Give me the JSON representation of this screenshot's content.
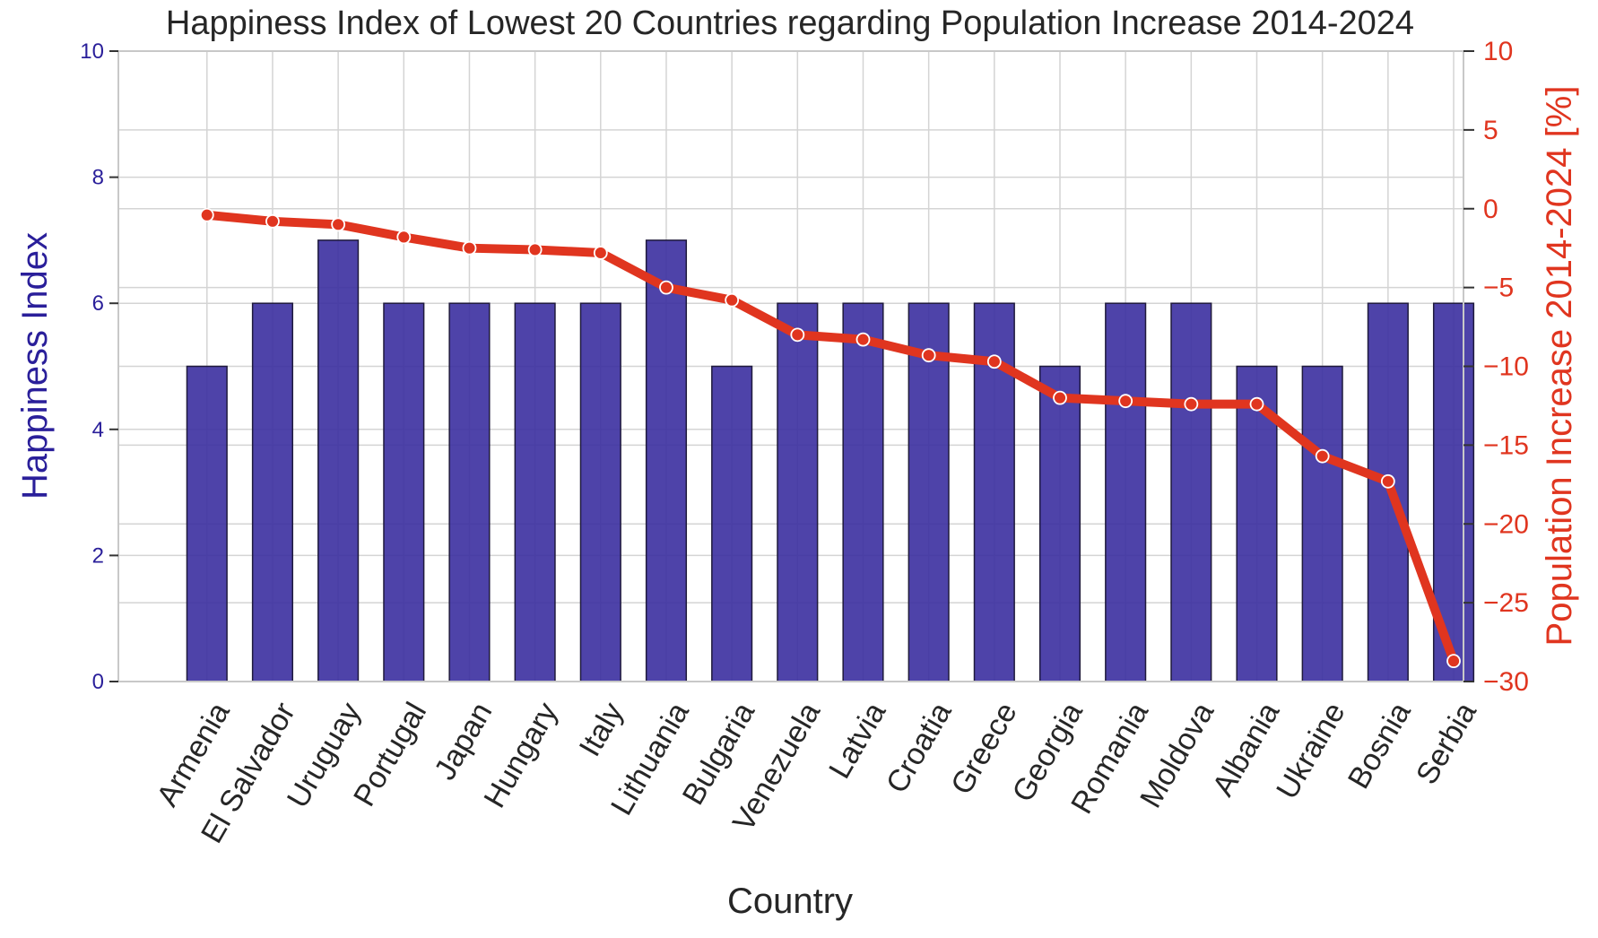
{
  "chart_data": {
    "type": "bar",
    "title": "Happiness Index of Lowest 20 Countries regarding Population Increase 2014-2024",
    "xlabel": "Country",
    "ylabel": "Happiness Index",
    "y2label": "Population Increase 2014-2024 [%]",
    "categories": [
      "Armenia",
      "El Salvador",
      "Uruguay",
      "Portugal",
      "Japan",
      "Hungary",
      "Italy",
      "Lithuania",
      "Bulgaria",
      "Venezuela",
      "Latvia",
      "Croatia",
      "Greece",
      "Georgia",
      "Romania",
      "Moldova",
      "Albania",
      "Ukraine",
      "Bosnia",
      "Serbia"
    ],
    "series": [
      {
        "name": "Happiness Index",
        "type": "bar",
        "axis": "left",
        "color": "#3b2fa0",
        "values": [
          5,
          6,
          7,
          6,
          6,
          6,
          6,
          7,
          5,
          6,
          6,
          6,
          6,
          5,
          6,
          6,
          5,
          5,
          6,
          6
        ]
      },
      {
        "name": "Population Increase 2014-2024 [%]",
        "type": "line",
        "axis": "right",
        "color": "#e0351f",
        "values": [
          -0.4,
          -0.8,
          -1.0,
          -1.8,
          -2.5,
          -2.6,
          -2.8,
          -5.0,
          -5.8,
          -8.0,
          -8.3,
          -9.3,
          -9.7,
          -12.0,
          -12.2,
          -12.4,
          -12.4,
          -15.7,
          -17.3,
          -28.7
        ]
      }
    ],
    "ylim": [
      0,
      10
    ],
    "y2lim": [
      -30,
      10
    ],
    "yticks": [
      0,
      2,
      4,
      6,
      8,
      10
    ],
    "y2ticks": [
      10,
      5,
      0,
      -5,
      -10,
      -15,
      -20,
      -25,
      -30
    ],
    "left_axis_color": "#2a1f9a",
    "right_axis_color": "#e0351f",
    "grid": true,
    "legend": "none"
  }
}
